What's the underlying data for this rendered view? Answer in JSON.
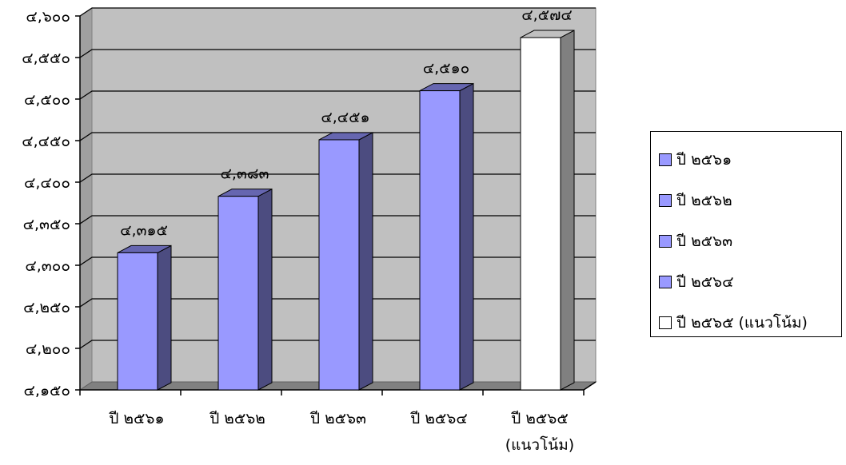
{
  "chart_data": {
    "type": "bar",
    "categories": [
      "ปี ๒๕๖๑",
      "ปี ๒๕๖๒",
      "ปี ๒๕๖๓",
      "ปี ๒๕๖๔",
      "ปี ๒๕๖๕\n(แนวโน้ม)"
    ],
    "values": [
      4315,
      4383,
      4451,
      4510,
      4574
    ],
    "data_labels": [
      "๔,๓๑๕",
      "๔,๓๘๓",
      "๔,๔๕๑",
      "๔,๕๑๐",
      "๔,๕๗๔"
    ],
    "ylim": [
      4150,
      4600
    ],
    "yticks": [
      4150,
      4200,
      4250,
      4300,
      4350,
      4400,
      4450,
      4500,
      4550,
      4600
    ],
    "ytick_labels": [
      "๔,๑๕๐",
      "๔,๒๐๐",
      "๔,๒๕๐",
      "๔,๓๐๐",
      "๔,๓๕๐",
      "๔,๔๐๐",
      "๔,๔๕๐",
      "๔,๕๐๐",
      "๔,๕๕๐",
      "๔,๖๐๐"
    ],
    "bar_colors": [
      "#9999ff",
      "#9999ff",
      "#9999ff",
      "#9999ff",
      "#ffffff"
    ],
    "wall_color": "#c0c0c0",
    "grid": true,
    "legend_position": "right",
    "legend": [
      {
        "label": "ปี ๒๕๖๑",
        "color": "#9999ff"
      },
      {
        "label": "ปี ๒๕๖๒",
        "color": "#9999ff"
      },
      {
        "label": "ปี ๒๕๖๓",
        "color": "#9999ff"
      },
      {
        "label": "ปี ๒๕๖๔",
        "color": "#9999ff"
      },
      {
        "label": "ปี ๒๕๖๕ (แนวโน้ม)",
        "color": "#ffffff"
      }
    ]
  }
}
